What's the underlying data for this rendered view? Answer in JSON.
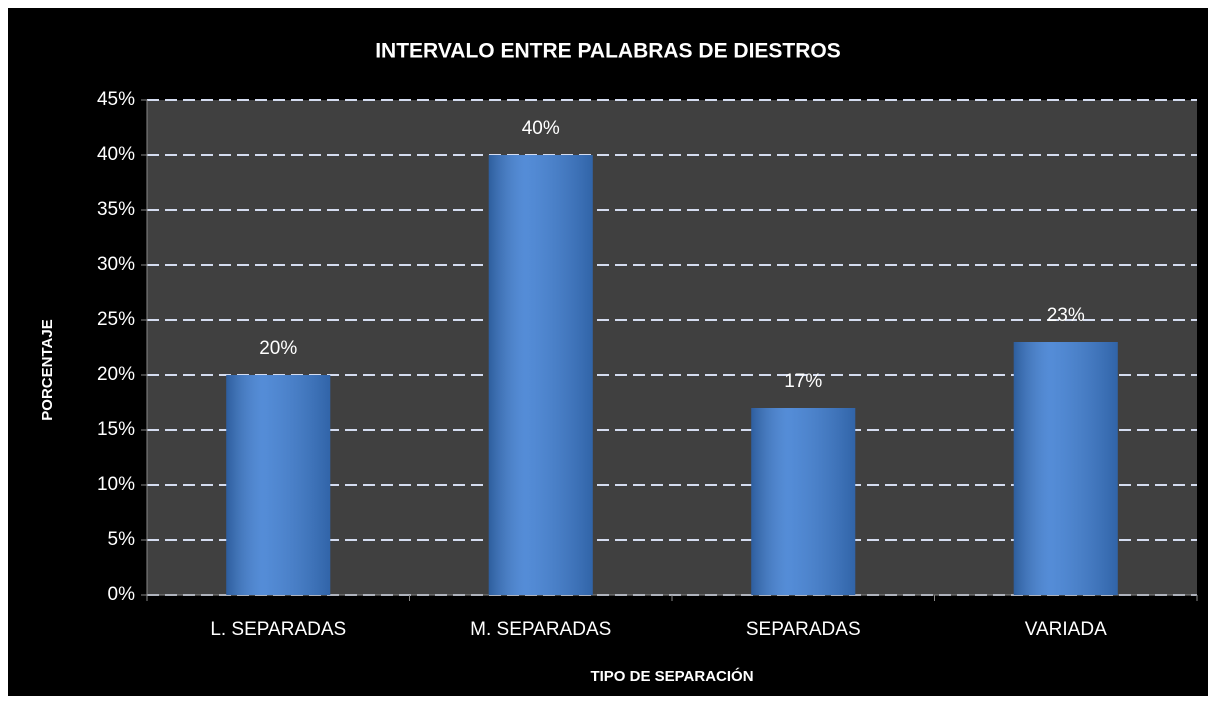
{
  "chart_data": {
    "type": "bar",
    "title": "INTERVALO ENTRE PALABRAS DE DIESTROS",
    "x_label": "TIPO DE SEPARACIÓN",
    "y_label": "PORCENTAJE",
    "categories": [
      "L. SEPARADAS",
      "M. SEPARADAS",
      "SEPARADAS",
      "VARIADA"
    ],
    "values": [
      20,
      40,
      17,
      23
    ],
    "value_labels": [
      "20%",
      "40%",
      "17%",
      "23%"
    ],
    "color": "#3d7dd2",
    "ylim": [
      0,
      45
    ],
    "yticks": [
      {
        "value": 0,
        "label": "0%"
      },
      {
        "value": 5,
        "label": "5%"
      },
      {
        "value": 10,
        "label": "10%"
      },
      {
        "value": 15,
        "label": "15%"
      },
      {
        "value": 20,
        "label": "20%"
      },
      {
        "value": 25,
        "label": "25%"
      },
      {
        "value": 30,
        "label": "30%"
      },
      {
        "value": 35,
        "label": "35%"
      },
      {
        "value": 40,
        "label": "40%"
      },
      {
        "value": 45,
        "label": "45%"
      }
    ],
    "grid": true
  }
}
